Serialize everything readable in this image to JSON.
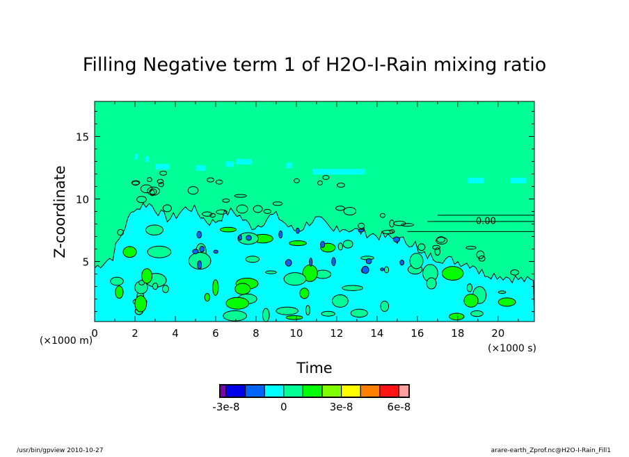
{
  "chart_data": {
    "type": "heatmap",
    "subtype": "filled-contour",
    "title": "Filling Negative term 1 of H2O-I-Rain mixing ratio",
    "xlabel": "Time",
    "ylabel": "Z-coordinate",
    "x_unit_label": "(×1000 s)",
    "y_unit_label": "(×1000 m)",
    "xlim": [
      0,
      21.8
    ],
    "ylim": [
      0.2,
      17.8
    ],
    "x_ticks": [
      "0",
      "2",
      "4",
      "6",
      "8",
      "10",
      "12",
      "14",
      "16",
      "18",
      "20"
    ],
    "x_tick_values": [
      0,
      2,
      4,
      6,
      8,
      10,
      12,
      14,
      16,
      18,
      20
    ],
    "y_ticks": [
      "5",
      "10",
      "15"
    ],
    "y_tick_values": [
      5,
      10,
      15
    ],
    "contour_label": "0.00",
    "colorbar": {
      "levels": [
        -3e-08,
        -2e-08,
        -1e-08,
        0,
        1e-08,
        2e-08,
        3e-08,
        4e-08,
        5e-08,
        6e-08
      ],
      "colors": [
        "#7c00b0",
        "#0000e6",
        "#0064ff",
        "#00ffff",
        "#00ff96",
        "#00ff00",
        "#80ff00",
        "#ffff00",
        "#ff7f00",
        "#ff1414",
        "#ffa0a0"
      ],
      "tick_labels": [
        "-3e-8",
        "0",
        "3e-8",
        "6e-8"
      ],
      "tick_values": [
        -3e-08,
        0,
        3e-08,
        6e-08
      ]
    },
    "background_value_color": "#00ff96",
    "low_region_color": "#00ffff"
  },
  "footer": {
    "left": "/usr/bin/gpview  2010-10-27",
    "right": "arare-earth_Zprof.nc@H2O-I-Rain_Fill1"
  }
}
